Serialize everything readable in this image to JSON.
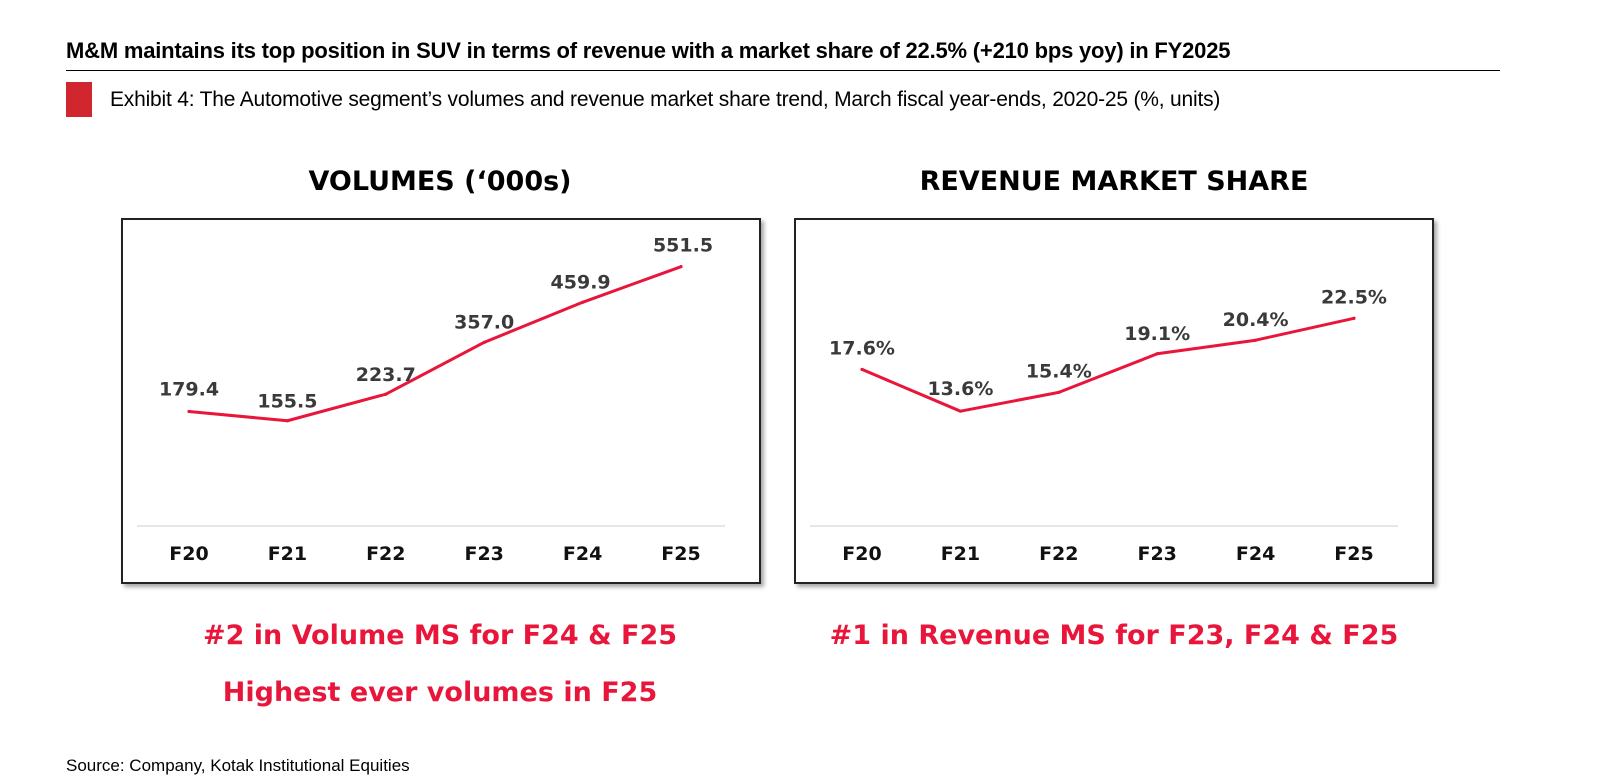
{
  "headline": "M&M maintains its top position in SUV in terms of revenue with a market share of 22.5% (+210 bps yoy) in FY2025",
  "exhibit": "Exhibit 4: The Automotive segment’s volumes and revenue market share trend, March fiscal year-ends, 2020-25 (%, units)",
  "colors": {
    "line": "#e8163a",
    "accent": "#d2262f",
    "note": "#e8163a"
  },
  "chart_data": [
    {
      "type": "line",
      "title": "VOLUMES (‘000s)",
      "categories": [
        "F20",
        "F21",
        "F22",
        "F23",
        "F24",
        "F25"
      ],
      "values": [
        179.4,
        155.5,
        223.7,
        357.0,
        459.9,
        551.5
      ],
      "labels": [
        "179.4",
        "155.5",
        "223.7",
        "357.0",
        "459.9",
        "551.5"
      ],
      "xlabel": "",
      "ylabel": "",
      "ylim": [
        -115,
        620
      ],
      "grid": false,
      "legend": "none"
    },
    {
      "type": "line",
      "title": "REVENUE MARKET SHARE",
      "categories": [
        "F20",
        "F21",
        "F22",
        "F23",
        "F24",
        "F25"
      ],
      "values": [
        17.6,
        13.6,
        15.4,
        19.1,
        20.4,
        22.5
      ],
      "labels": [
        "17.6%",
        "13.6%",
        "15.4%",
        "19.1%",
        "20.4%",
        "22.5%"
      ],
      "xlabel": "",
      "ylabel": "",
      "ylim": [
        2.6,
        30
      ],
      "grid": false,
      "legend": "none"
    }
  ],
  "notes": {
    "volume_ms": "#2 in Volume MS for F24 & F25",
    "highest": "Highest ever volumes in F25",
    "revenue_ms": "#1 in Revenue MS for F23, F24 & F25"
  },
  "source": "Source: Company, Kotak Institutional Equities"
}
